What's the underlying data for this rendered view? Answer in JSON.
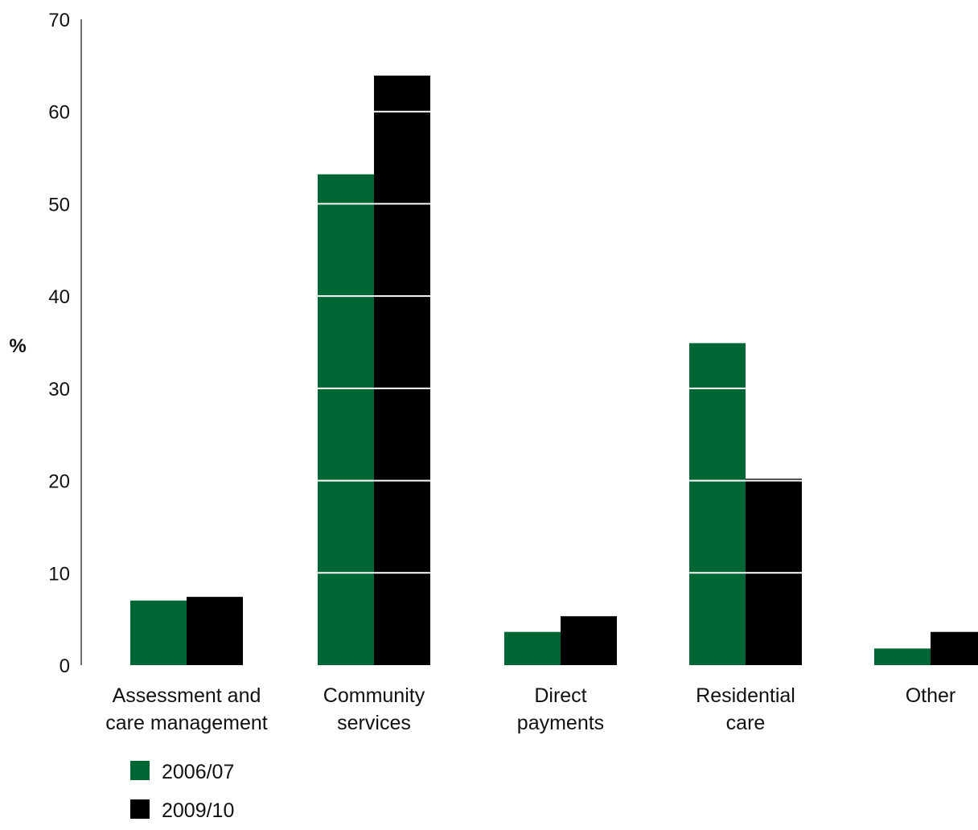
{
  "chart_data": {
    "type": "bar",
    "title": "",
    "xlabel": "",
    "ylabel": "%",
    "ylim": [
      0,
      70
    ],
    "yticks": [
      0,
      10,
      20,
      30,
      40,
      50,
      60,
      70
    ],
    "grid": "white horizontal lines drawn over bars only",
    "legend_position": "bottom-left",
    "categories": [
      [
        "Assessment and",
        "care management"
      ],
      [
        "Community",
        "services"
      ],
      [
        "Direct",
        "payments"
      ],
      [
        "Residential",
        "care"
      ],
      [
        "Other"
      ]
    ],
    "series": [
      {
        "name": "2006/07",
        "color": "#006633",
        "values": [
          7,
          53.2,
          3.6,
          34.9,
          1.8
        ]
      },
      {
        "name": "2009/10",
        "color": "#000000",
        "values": [
          7.4,
          63.9,
          5.3,
          20.2,
          3.6
        ]
      }
    ]
  }
}
